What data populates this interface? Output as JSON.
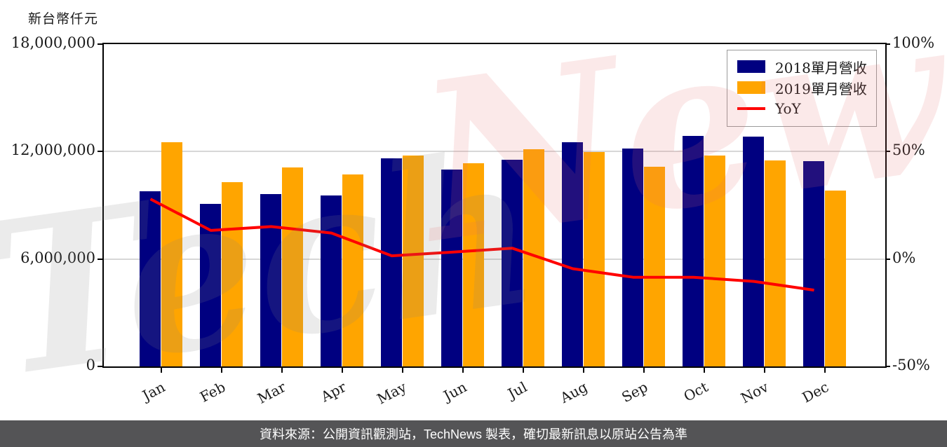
{
  "watermark": {
    "text": "TechNews",
    "left_text": "Tech",
    "right_text": "News"
  },
  "footer": {
    "text": "資料來源：公開資訊觀測站，TechNews 製表，確切最新訊息以原站公告為準"
  },
  "chart_data": {
    "type": "bar",
    "title": "",
    "unit_label": "新台幣仟元",
    "categories": [
      "Jan",
      "Feb",
      "Mar",
      "Apr",
      "May",
      "Jun",
      "Jul",
      "Aug",
      "Sep",
      "Oct",
      "Nov",
      "Dec"
    ],
    "series": [
      {
        "name": "2018單月營收",
        "type": "bar",
        "color": "#000080",
        "values": [
          9800000,
          9080000,
          9640000,
          9560000,
          11620000,
          11010000,
          11540000,
          12530000,
          12170000,
          12870000,
          12840000,
          11470000
        ]
      },
      {
        "name": "2019單月營收",
        "type": "bar",
        "color": "#FFA500",
        "values": [
          12530000,
          10290000,
          11100000,
          10720000,
          11790000,
          11360000,
          12120000,
          11960000,
          11140000,
          11770000,
          11500000,
          9810000
        ]
      },
      {
        "name": "YoY",
        "type": "line",
        "color": "#FF0000",
        "axis": "right",
        "values_percent": [
          27.9,
          13.3,
          15.1,
          12.1,
          1.5,
          3.2,
          5.0,
          -4.5,
          -8.5,
          -8.5,
          -10.4,
          -14.5
        ]
      }
    ],
    "left_axis": {
      "label": "新台幣仟元",
      "min": 0,
      "max": 18000000,
      "ticks": [
        "18,000,000",
        "12,000,000",
        "6,000,000",
        "0"
      ]
    },
    "right_axis": {
      "min": -50,
      "max": 100,
      "ticks": [
        "100%",
        "50%",
        "0%",
        "-50%"
      ]
    },
    "grid": true,
    "legend_position": "top-right",
    "x_tick_rotation": 30
  }
}
